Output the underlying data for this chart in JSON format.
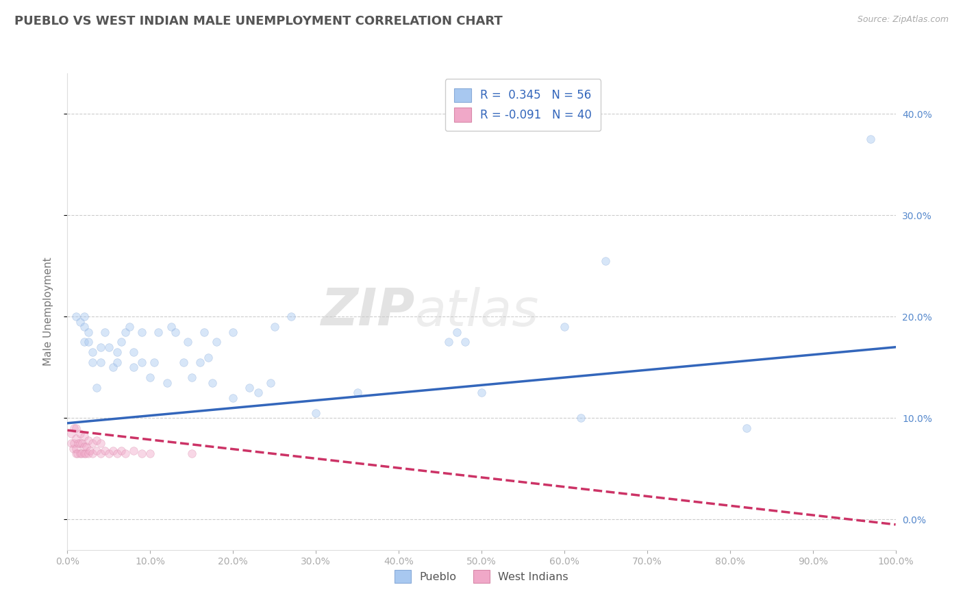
{
  "title": "PUEBLO VS WEST INDIAN MALE UNEMPLOYMENT CORRELATION CHART",
  "source": "Source: ZipAtlas.com",
  "ylabel": "Male Unemployment",
  "xlim": [
    0.0,
    1.0
  ],
  "ylim": [
    -0.03,
    0.44
  ],
  "xticks": [
    0.0,
    0.1,
    0.2,
    0.3,
    0.4,
    0.5,
    0.6,
    0.7,
    0.8,
    0.9,
    1.0
  ],
  "xticklabels": [
    "0.0%",
    "10.0%",
    "20.0%",
    "30.0%",
    "40.0%",
    "50.0%",
    "60.0%",
    "70.0%",
    "80.0%",
    "90.0%",
    "100.0%"
  ],
  "yticks": [
    0.0,
    0.1,
    0.2,
    0.3,
    0.4
  ],
  "yticklabels": [
    "0.0%",
    "10.0%",
    "20.0%",
    "30.0%",
    "40.0%"
  ],
  "pueblo_color": "#a8c8f0",
  "pueblo_edge_color": "#88aad8",
  "wi_color": "#f0a8c8",
  "wi_edge_color": "#d888a8",
  "trend_pueblo_color": "#3366bb",
  "trend_wi_color": "#cc3366",
  "R_pueblo": "0.345",
  "N_pueblo": "56",
  "R_wi": "-0.091",
  "N_wi": "40",
  "watermark_zip": "ZIP",
  "watermark_atlas": "atlas",
  "bg_color": "#ffffff",
  "grid_color": "#cccccc",
  "title_color": "#555555",
  "right_tick_color": "#5588cc",
  "bottom_tick_color": "#aaaaaa",
  "source_color": "#aaaaaa",
  "legend_text_color": "#3366bb",
  "marker_size": 70,
  "marker_alpha": 0.45,
  "trend_lw": 2.5,
  "pueblo_x": [
    0.01,
    0.015,
    0.02,
    0.02,
    0.02,
    0.025,
    0.025,
    0.03,
    0.03,
    0.035,
    0.04,
    0.04,
    0.045,
    0.05,
    0.055,
    0.06,
    0.06,
    0.065,
    0.07,
    0.075,
    0.08,
    0.08,
    0.09,
    0.09,
    0.1,
    0.105,
    0.11,
    0.12,
    0.125,
    0.13,
    0.14,
    0.145,
    0.15,
    0.16,
    0.165,
    0.17,
    0.175,
    0.18,
    0.2,
    0.2,
    0.22,
    0.23,
    0.245,
    0.25,
    0.27,
    0.3,
    0.35,
    0.46,
    0.47,
    0.48,
    0.5,
    0.6,
    0.62,
    0.65,
    0.82,
    0.97
  ],
  "pueblo_y": [
    0.2,
    0.195,
    0.175,
    0.19,
    0.2,
    0.175,
    0.185,
    0.155,
    0.165,
    0.13,
    0.155,
    0.17,
    0.185,
    0.17,
    0.15,
    0.155,
    0.165,
    0.175,
    0.185,
    0.19,
    0.15,
    0.165,
    0.155,
    0.185,
    0.14,
    0.155,
    0.185,
    0.135,
    0.19,
    0.185,
    0.155,
    0.175,
    0.14,
    0.155,
    0.185,
    0.16,
    0.135,
    0.175,
    0.12,
    0.185,
    0.13,
    0.125,
    0.135,
    0.19,
    0.2,
    0.105,
    0.125,
    0.175,
    0.185,
    0.175,
    0.125,
    0.19,
    0.1,
    0.255,
    0.09,
    0.375
  ],
  "wi_x": [
    0.005,
    0.005,
    0.007,
    0.008,
    0.008,
    0.01,
    0.01,
    0.01,
    0.01,
    0.012,
    0.013,
    0.015,
    0.015,
    0.015,
    0.017,
    0.018,
    0.02,
    0.02,
    0.02,
    0.022,
    0.023,
    0.025,
    0.025,
    0.027,
    0.03,
    0.03,
    0.035,
    0.035,
    0.04,
    0.04,
    0.045,
    0.05,
    0.055,
    0.06,
    0.065,
    0.07,
    0.08,
    0.09,
    0.1,
    0.15
  ],
  "wi_y": [
    0.075,
    0.085,
    0.07,
    0.075,
    0.09,
    0.065,
    0.07,
    0.08,
    0.09,
    0.065,
    0.075,
    0.065,
    0.075,
    0.085,
    0.065,
    0.075,
    0.065,
    0.072,
    0.082,
    0.065,
    0.072,
    0.065,
    0.078,
    0.068,
    0.065,
    0.075,
    0.068,
    0.078,
    0.065,
    0.075,
    0.068,
    0.065,
    0.068,
    0.065,
    0.068,
    0.065,
    0.068,
    0.065,
    0.065,
    0.065
  ],
  "pueblo_trend_x0": 0.0,
  "pueblo_trend_y0": 0.095,
  "pueblo_trend_x1": 1.0,
  "pueblo_trend_y1": 0.17,
  "wi_trend_x0": 0.0,
  "wi_trend_y0": 0.088,
  "wi_trend_x1": 1.0,
  "wi_trend_y1": -0.005
}
